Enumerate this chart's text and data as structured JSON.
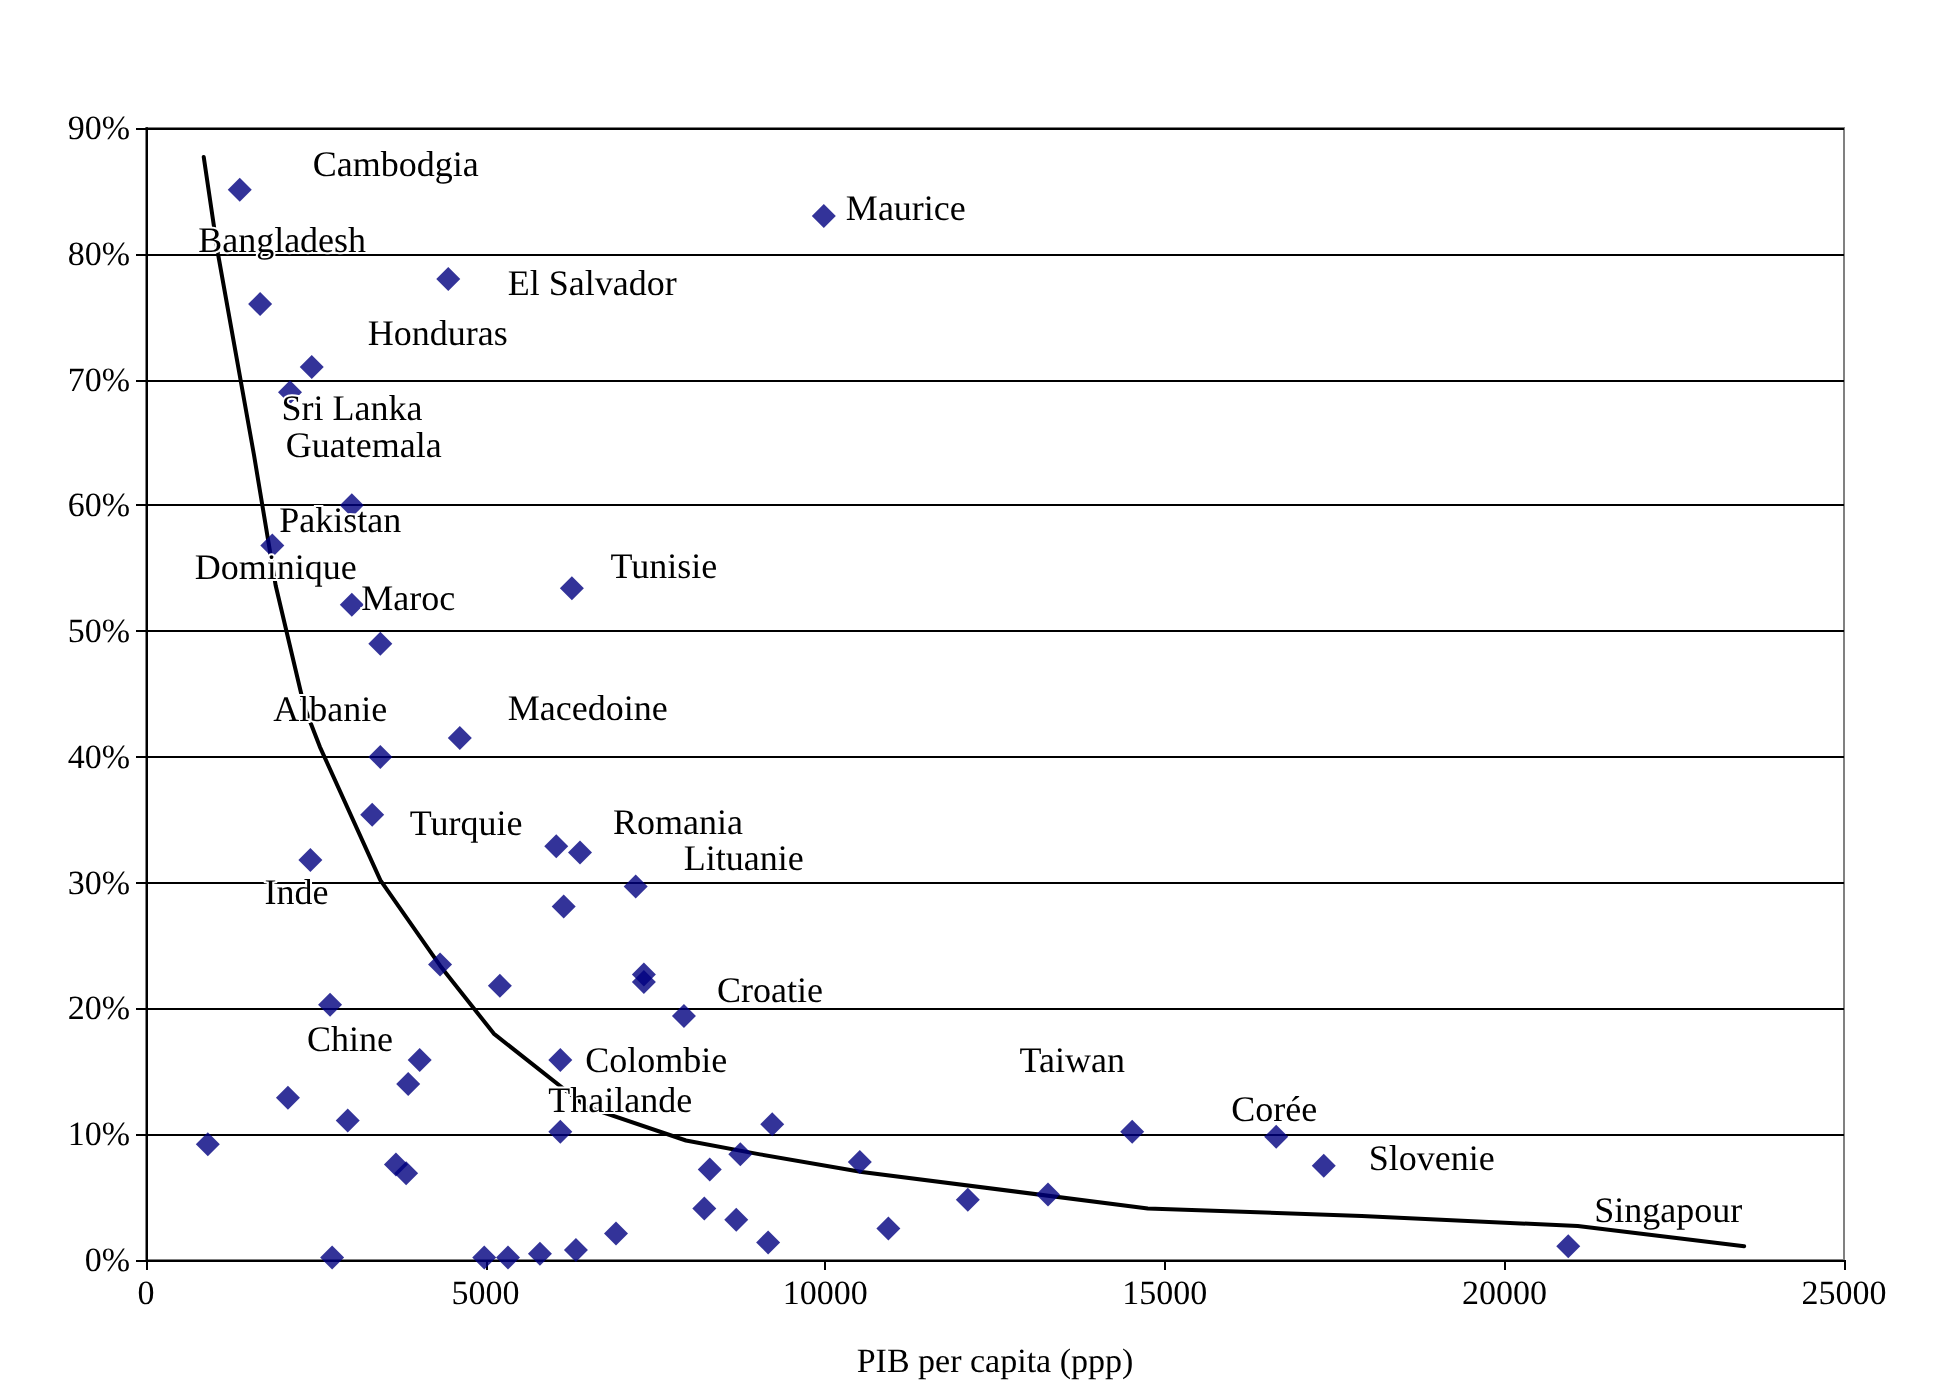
{
  "chart_data": {
    "type": "scatter",
    "xlabel": "PIB per capita (ppp)",
    "xlim": [
      0,
      25000
    ],
    "xticks": [
      0,
      5000,
      10000,
      15000,
      20000,
      25000
    ],
    "ylim": [
      0,
      90
    ],
    "yticks": [
      {
        "value": 0,
        "label": "0%"
      },
      {
        "value": 10,
        "label": "10%"
      },
      {
        "value": 20,
        "label": "20%"
      },
      {
        "value": 30,
        "label": "30%"
      },
      {
        "value": 40,
        "label": "40%"
      },
      {
        "value": 50,
        "label": "50%"
      },
      {
        "value": 60,
        "label": "60%"
      },
      {
        "value": 70,
        "label": "70%"
      },
      {
        "value": 80,
        "label": "80%"
      },
      {
        "value": 90,
        "label": "90%"
      }
    ],
    "grid": "y",
    "marker": "diamond",
    "series": [
      {
        "color": "#000080",
        "x": [
          1380,
          1680,
          4450,
          2440,
          2120,
          3030,
          1860,
          3030,
          3450,
          6270,
          9980,
          4620,
          3450,
          3330,
          2420,
          6040,
          6390,
          7210,
          6150,
          4330,
          5210,
          7330,
          7330,
          2710,
          7920,
          4030,
          3860,
          6100,
          2090,
          2970,
          910,
          6100,
          3680,
          3830,
          2740,
          4980,
          5330,
          5800,
          6330,
          6920,
          8300,
          8750,
          9220,
          8220,
          8690,
          9160,
          10510,
          10930,
          12100,
          13280,
          14520,
          16640,
          17340,
          20940
        ],
        "values": [
          85.1,
          76,
          78,
          71,
          69,
          60,
          56.8,
          52.1,
          49,
          53.4,
          83,
          41.5,
          40,
          35.4,
          31.8,
          32.9,
          32.4,
          29.7,
          28.1,
          23.5,
          21.8,
          22.7,
          22.1,
          20.3,
          19.4,
          15.9,
          14,
          15.9,
          12.9,
          11.1,
          9.2,
          10.2,
          7.6,
          6.9,
          0.2,
          0.2,
          0.2,
          0.5,
          0.8,
          2.1,
          7.2,
          8.4,
          10.8,
          4.1,
          3.2,
          1.4,
          7.8,
          2.5,
          4.8,
          5.2,
          10.2,
          9.8,
          7.5,
          1.1
        ]
      },
      {
        "type": "line",
        "color": "#000000",
        "marker": "none",
        "line_style": "solid",
        "x": [
          850,
          1060,
          1590,
          1910,
          2330,
          2560,
          3450,
          4330,
          5120,
          6480,
          7950,
          9040,
          10540,
          14750,
          17900,
          21080,
          23530
        ],
        "values": [
          87.7,
          80,
          64,
          53.6,
          44,
          40.8,
          30.2,
          23.4,
          18,
          12.2,
          9.5,
          8.4,
          7,
          4.1,
          3.5,
          2.7,
          1.1
        ]
      }
    ],
    "annotations": [
      {
        "text": "Cambodgia",
        "x": 1380,
        "y": 85.1
      },
      {
        "text": "Bangladesh",
        "x": 1680,
        "y": 76
      },
      {
        "text": "El Salvador",
        "x": 4450,
        "y": 78
      },
      {
        "text": "Honduras",
        "x": 2440,
        "y": 71
      },
      {
        "text": "Sri Lanka",
        "x": 2120,
        "y": 69
      },
      {
        "text": "Guatemala",
        "x": 3030,
        "y": 60
      },
      {
        "text": "Pakistan",
        "x": 1860,
        "y": 56.8
      },
      {
        "text": "Dominique",
        "x": 3030,
        "y": 52.1
      },
      {
        "text": "Maroc",
        "x": 3450,
        "y": 49
      },
      {
        "text": "Tunisie",
        "x": 6270,
        "y": 53.4
      },
      {
        "text": "Maurice",
        "x": 9980,
        "y": 83
      },
      {
        "text": "Macedoine",
        "x": 4620,
        "y": 41.5
      },
      {
        "text": "Albanie",
        "x": 3450,
        "y": 40
      },
      {
        "text": "Turquie",
        "x": 3330,
        "y": 35.4
      },
      {
        "text": "Romania",
        "x": 6390,
        "y": 32.4
      },
      {
        "text": "Inde",
        "x": 2420,
        "y": 31.8
      },
      {
        "text": "Lituanie",
        "x": 7210,
        "y": 29.7
      },
      {
        "text": "Croatie",
        "x": 7920,
        "y": 19.4
      },
      {
        "text": "Chine",
        "x": 2710,
        "y": 20.3
      },
      {
        "text": "Colombie",
        "x": 6100,
        "y": 15.9
      },
      {
        "text": "Thailande",
        "x": 6100,
        "y": 10.2
      },
      {
        "text": "Taiwan",
        "x": 14520,
        "y": 10.2
      },
      {
        "text": "Corée",
        "x": 16640,
        "y": 9.8
      },
      {
        "text": "Slovenie",
        "x": 17340,
        "y": 7.5
      },
      {
        "text": "Singapour",
        "x": 20940,
        "y": 1.1
      }
    ]
  }
}
